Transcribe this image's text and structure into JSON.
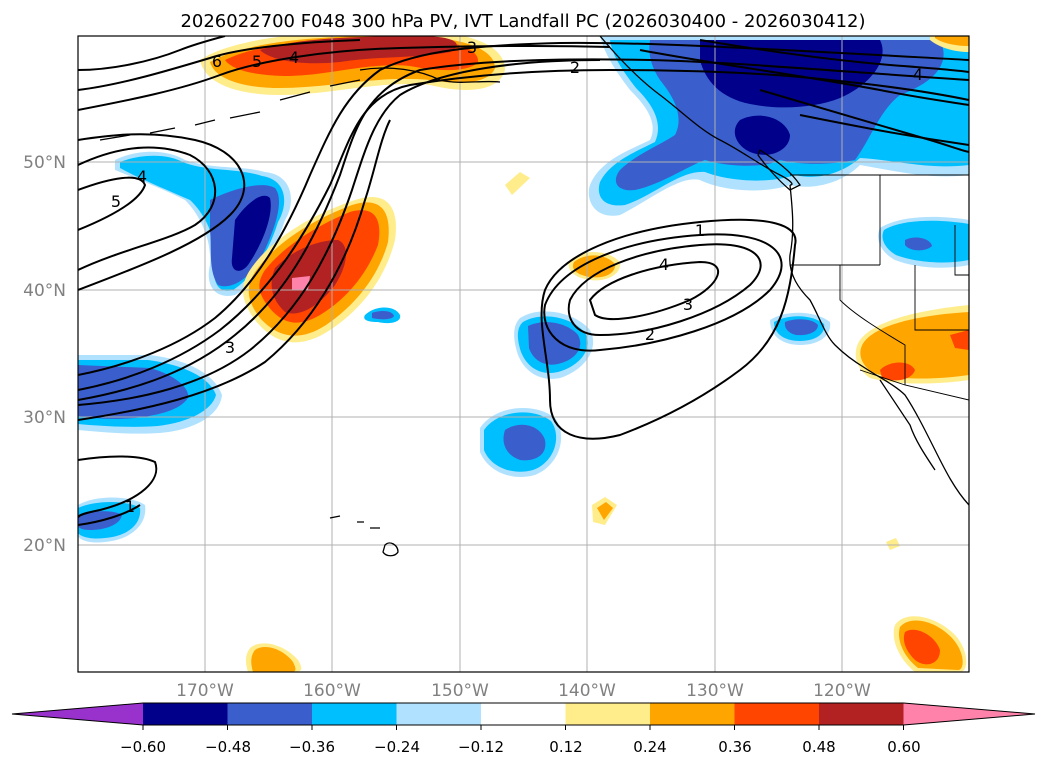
{
  "title": "2026022700 F048 300 hPa PV, IVT Landfall PC (2026030400 - 2026030412)",
  "lat_labels": [
    "50°N",
    "40°N",
    "30°N",
    "20°N"
  ],
  "lon_labels": [
    "170°W",
    "160°W",
    "150°W",
    "140°W",
    "130°W",
    "120°W"
  ],
  "colorbar": {
    "ticks": [
      "−0.60",
      "−0.48",
      "−0.36",
      "−0.24",
      "−0.12",
      "0.12",
      "0.24",
      "0.36",
      "0.48",
      "0.60"
    ],
    "colors": [
      "#9932cc",
      "#00008b",
      "#3a5fcd",
      "#00bfff",
      "#b0e2ff",
      "#ffffff",
      "#ffec8b",
      "#ffa500",
      "#ff4500",
      "#b22222",
      "#ff82ab"
    ]
  },
  "contour_labels": [
    "6",
    "5",
    "4",
    "3",
    "2",
    "4",
    "4",
    "5",
    "1",
    "4",
    "3",
    "2",
    "3",
    "1"
  ],
  "colors": {
    "frame": "#000000",
    "grid": "#b0b0b0",
    "coast": "#000000"
  }
}
